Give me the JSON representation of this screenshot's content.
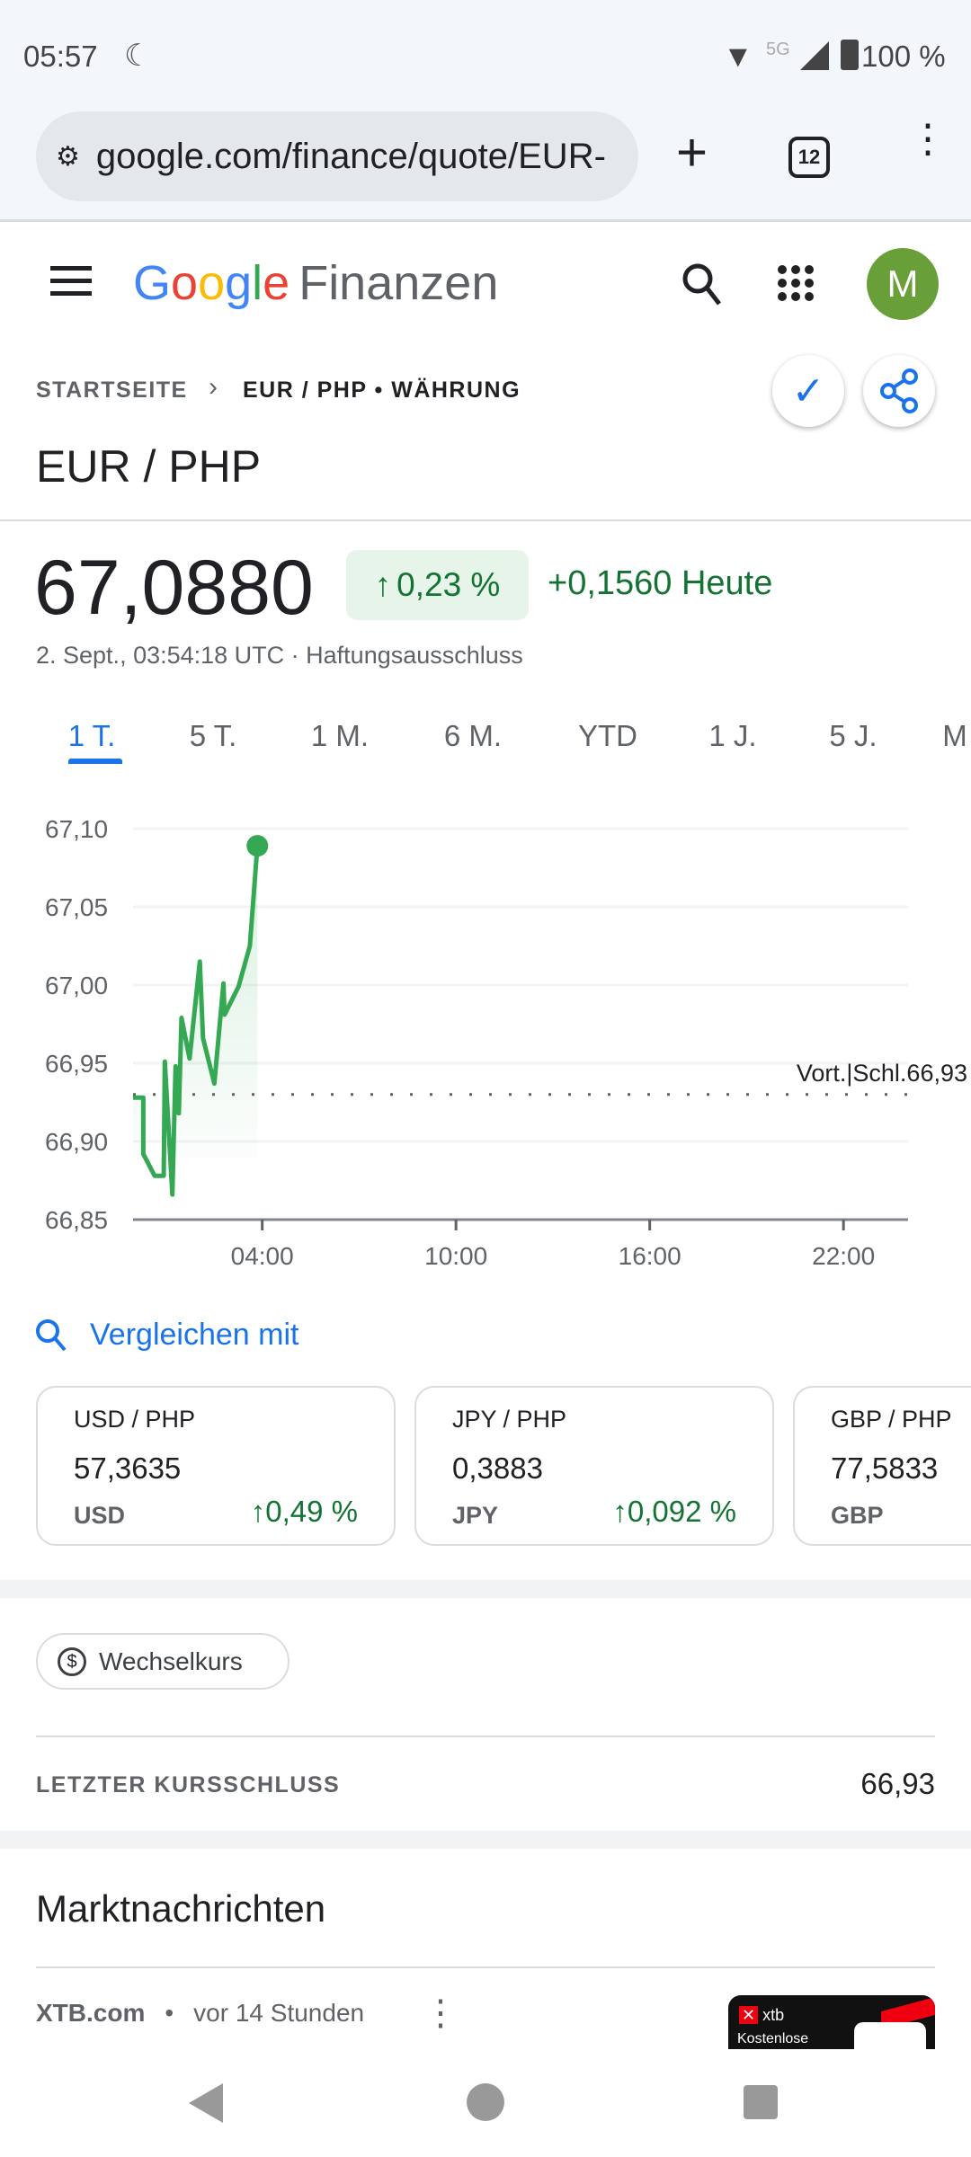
{
  "status_bar": {
    "time": "05:57",
    "network": "5G",
    "battery": "100 %"
  },
  "browser": {
    "url": "google.com/finance/quote/EUR-",
    "tab_count": "12"
  },
  "header": {
    "logo": "Google",
    "product": "Finanzen",
    "avatar_letter": "M",
    "avatar_color": "#689f38"
  },
  "breadcrumb": {
    "home": "STARTSEITE",
    "current": "EUR / PHP • WÄHRUNG"
  },
  "title": "EUR / PHP",
  "quote": {
    "price": "67,0880",
    "change_pct": "0,23 %",
    "change_abs": "+0,1560 Heute",
    "timestamp": "2. Sept., 03:54:18 UTC · ",
    "disclaimer": "Haftungsausschluss"
  },
  "range_tabs": [
    {
      "label": "1 T.",
      "active": true
    },
    {
      "label": "5 T."
    },
    {
      "label": "1 M."
    },
    {
      "label": "6 M."
    },
    {
      "label": "YTD"
    },
    {
      "label": "1 J."
    },
    {
      "label": "5 J."
    },
    {
      "label": "M"
    }
  ],
  "chart_data": {
    "type": "line",
    "x_ticks": [
      "04:00",
      "10:00",
      "16:00",
      "22:00"
    ],
    "x_range": [
      "00:00",
      "24:00"
    ],
    "y_ticks": [
      "67,10",
      "67,05",
      "67,00",
      "66,95",
      "66,90",
      "66,85"
    ],
    "ylim": [
      66.85,
      67.1
    ],
    "grid": true,
    "previous_close": {
      "label": "Vort.|Schl.66,93",
      "value": 66.93
    },
    "line_color": "#34a853",
    "series": [
      {
        "x": [
          "00:00",
          "00:19",
          "00:19",
          "00:40",
          "00:57",
          "00:59",
          "01:13",
          "01:19",
          "01:25",
          "01:30",
          "01:45",
          "02:04",
          "02:10",
          "02:31",
          "02:48",
          "02:50",
          "03:16",
          "03:37",
          "03:51"
        ],
        "y": [
          66.928,
          66.928,
          66.892,
          66.878,
          66.878,
          66.951,
          66.866,
          66.948,
          66.918,
          66.979,
          66.953,
          67.015,
          66.966,
          66.937,
          67.001,
          66.981,
          66.999,
          67.025,
          67.089
        ]
      }
    ]
  },
  "compare": {
    "label": "Vergleichen mit",
    "cards": [
      {
        "pair": "USD / PHP",
        "price": "57,3635",
        "code": "USD",
        "change": "0,49 %"
      },
      {
        "pair": "JPY / PHP",
        "price": "0,3883",
        "code": "JPY",
        "change": "0,092 %"
      },
      {
        "pair": "GBP / PHP",
        "price": "77,5833",
        "code": "GBP",
        "change": ""
      }
    ]
  },
  "chip": {
    "label": "Wechselkurs"
  },
  "last_close": {
    "label": "LETZTER KURSSCHLUSS",
    "value": "66,93"
  },
  "news": {
    "title": "Marktnachrichten",
    "source": "XTB.com",
    "time": "vor 14 Stunden",
    "thumb_brand": "xtb",
    "thumb_text": "Kostenlose"
  }
}
